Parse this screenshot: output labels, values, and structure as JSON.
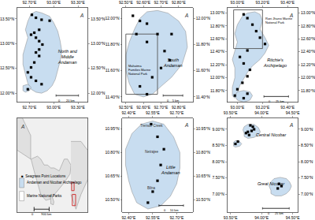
{
  "chart_data": [
    {
      "type": "map",
      "grid": false,
      "xlim": [
        92.55,
        93.42
      ],
      "ylim": [
        11.82,
        13.72
      ],
      "xticks": [
        {
          "value": 92.7,
          "label": "92.70°E"
        },
        {
          "value": 93.0,
          "label": "93.00°E"
        },
        {
          "value": 93.3,
          "label": "93.30°E"
        }
      ],
      "yticks": [
        {
          "value": 12.0,
          "label": "12.00°N"
        },
        {
          "value": 12.5,
          "label": "12.50°N"
        },
        {
          "value": 13.0,
          "label": "13.00°N"
        },
        {
          "value": 13.5,
          "label": "13.50°N"
        }
      ],
      "series": [
        {
          "type": "background",
          "color": "#ffffff"
        },
        {
          "type": "area",
          "color": "#c8ddf0",
          "x": [
            92.72,
            92.78,
            92.85,
            92.95,
            93.0,
            93.05,
            93.08,
            93.1,
            93.08,
            93.05,
            93.02,
            92.98,
            92.92,
            92.85,
            92.78,
            92.72,
            92.68,
            92.65,
            92.62,
            92.62,
            92.65,
            92.68,
            92.65,
            92.68,
            92.72
          ],
          "y": [
            13.6,
            13.65,
            13.62,
            13.55,
            13.42,
            13.25,
            13.05,
            12.85,
            12.65,
            12.45,
            12.28,
            12.15,
            12.05,
            12.0,
            12.02,
            12.08,
            12.2,
            12.38,
            12.58,
            12.78,
            12.95,
            13.12,
            13.28,
            13.45,
            13.6
          ]
        },
        {
          "type": "area",
          "color": "#c8ddf0",
          "x": [
            92.62,
            92.65,
            92.7,
            92.72,
            92.68,
            92.62,
            92.62
          ],
          "y": [
            12.05,
            12.02,
            12.05,
            12.12,
            12.18,
            12.15,
            12.05
          ]
        },
        {
          "type": "scatter",
          "marker": "square",
          "color": "#000000",
          "x": [
            92.73,
            92.78,
            92.85,
            92.95,
            92.82,
            92.76,
            92.72,
            92.78,
            92.82,
            92.86,
            92.82,
            92.78,
            92.82,
            92.76,
            92.72,
            92.68,
            92.72,
            92.78,
            92.85,
            92.68
          ],
          "y": [
            13.58,
            13.52,
            13.48,
            13.46,
            13.28,
            13.22,
            13.18,
            13.12,
            13.05,
            12.98,
            12.88,
            12.82,
            12.75,
            12.62,
            12.52,
            12.42,
            12.32,
            12.25,
            12.18,
            12.08
          ]
        },
        {
          "type": "scale_bar",
          "color": "#000000",
          "label": "0       20 km"
        }
      ],
      "annotations": [
        {
          "text": "North and\nMiddle\nAndaman"
        },
        {
          "text": "A"
        }
      ]
    },
    {
      "type": "map",
      "grid": false,
      "xlim": [
        92.48,
        92.88
      ],
      "ylim": [
        11.36,
        12.08
      ],
      "xticks": [
        {
          "value": 92.5,
          "label": "92.50°E"
        },
        {
          "value": 92.6,
          "label": "92.60°E"
        },
        {
          "value": 92.7,
          "label": "92.70°E"
        },
        {
          "value": 92.8,
          "label": "92.80°E"
        }
      ],
      "yticks": [
        {
          "value": 11.4,
          "label": "11.40°N"
        },
        {
          "value": 11.6,
          "label": "11.60°N"
        },
        {
          "value": 11.8,
          "label": "11.80°N"
        },
        {
          "value": 12.0,
          "label": "12.00°N"
        }
      ],
      "series": [
        {
          "type": "background",
          "color": "#ffffff"
        },
        {
          "type": "area",
          "color": "#c8ddf0",
          "x": [
            92.62,
            92.68,
            92.74,
            92.8,
            92.84,
            92.85,
            92.82,
            92.76,
            92.7,
            92.65,
            92.6,
            92.55,
            92.52,
            92.5,
            92.5,
            92.52,
            92.55,
            92.58,
            92.62
          ],
          "y": [
            12.05,
            12.06,
            12.04,
            11.98,
            11.9,
            11.78,
            11.65,
            11.55,
            11.48,
            11.42,
            11.4,
            11.42,
            11.5,
            11.6,
            11.72,
            11.82,
            11.92,
            12.0,
            12.05
          ]
        },
        {
          "type": "rect",
          "color": "#555555",
          "rect": [
            92.5,
            11.42,
            92.68,
            11.88
          ],
          "label": "Mahatma\nFamilies Marine\nNational Park"
        },
        {
          "type": "scatter",
          "marker": "square",
          "color": "#000000",
          "x": [
            92.54,
            92.58,
            92.62,
            92.56,
            92.62,
            92.68,
            92.76,
            92.72,
            92.75,
            92.7,
            92.65,
            92.58,
            92.62
          ],
          "y": [
            12.02,
            11.98,
            11.96,
            11.88,
            11.82,
            11.88,
            11.88,
            11.75,
            11.68,
            11.62,
            11.55,
            11.48,
            11.42
          ]
        },
        {
          "type": "scale_bar",
          "color": "#000000",
          "label": "0    5 km"
        }
      ],
      "annotations": [
        {
          "text": "South\nAndaman"
        },
        {
          "text": "A"
        }
      ]
    },
    {
      "type": "map",
      "grid": false,
      "xlim": [
        92.92,
        93.48
      ],
      "ylim": [
        11.62,
        13.08
      ],
      "xticks": [
        {
          "value": 93.0,
          "label": "93.00°E"
        },
        {
          "value": 93.2,
          "label": "93.20°E"
        },
        {
          "value": 93.4,
          "label": "93.40°E"
        }
      ],
      "yticks": [
        {
          "value": 11.8,
          "label": "11.80°N"
        },
        {
          "value": 12.0,
          "label": "12.00°N"
        },
        {
          "value": 12.2,
          "label": "12.20°N"
        },
        {
          "value": 12.4,
          "label": "12.40°N"
        },
        {
          "value": 12.6,
          "label": "12.60°N"
        },
        {
          "value": 12.8,
          "label": "12.80°N"
        },
        {
          "value": 13.0,
          "label": "13.00°N"
        }
      ],
      "series": [
        {
          "type": "background",
          "color": "#ffffff"
        },
        {
          "type": "area",
          "color": "#c8ddf0",
          "x": [
            93.04,
            93.08,
            93.14,
            93.18,
            93.2,
            93.18,
            93.22,
            93.25,
            93.22,
            93.18,
            93.12,
            93.08,
            93.05,
            93.02,
            93.0,
            92.98,
            92.96,
            92.96,
            92.98,
            92.98,
            92.96,
            92.98,
            93.0,
            92.98,
            93.0,
            93.04
          ],
          "y": [
            12.95,
            13.0,
            13.02,
            12.98,
            12.88,
            12.75,
            12.62,
            12.5,
            12.38,
            12.28,
            12.18,
            12.08,
            11.98,
            11.88,
            11.75,
            11.68,
            11.72,
            11.85,
            12.0,
            12.15,
            12.28,
            12.42,
            12.55,
            12.68,
            12.82,
            12.95
          ]
        },
        {
          "type": "area",
          "color": "#c8ddf0",
          "x": [
            93.0,
            93.05,
            93.1,
            93.12,
            93.1,
            93.05,
            93.0,
            92.98,
            93.0
          ],
          "y": [
            11.65,
            11.62,
            11.65,
            11.72,
            11.78,
            11.8,
            11.78,
            11.72,
            11.65
          ]
        },
        {
          "type": "rect",
          "color": "#555555",
          "rect": [
            92.97,
            12.45,
            93.2,
            13.05
          ],
          "label": "Rani Jhansi Marine\nNational Park"
        },
        {
          "type": "scatter",
          "marker": "square",
          "color": "#000000",
          "x": [
            93.05,
            93.08,
            93.12,
            93.15,
            93.18,
            93.22,
            93.08,
            93.02,
            93.05,
            93.1,
            93.08,
            93.04,
            93.0,
            92.98,
            93.05,
            93.08
          ],
          "y": [
            12.98,
            12.92,
            12.82,
            12.72,
            12.62,
            12.52,
            12.42,
            12.32,
            12.22,
            12.12,
            12.02,
            11.92,
            11.82,
            11.72,
            11.68,
            11.75
          ]
        },
        {
          "type": "scale_bar",
          "color": "#000000",
          "label": "0      25 km"
        }
      ],
      "annotations": [
        {
          "text": "Ritchie's\nArchipelago"
        },
        {
          "text": "A"
        }
      ]
    },
    {
      "type": "map",
      "grid": false,
      "tick_labels": false,
      "xlim": [
        60,
        102
      ],
      "ylim": [
        4,
        36
      ],
      "series": [
        {
          "type": "background",
          "color": "#f0f0f0"
        },
        {
          "type": "area",
          "color": "#e0e0e0",
          "x": [
            68.2,
            72,
            74,
            76,
            78,
            80,
            82,
            85,
            88,
            90,
            92,
            91.5,
            88,
            85,
            82,
            80,
            77,
            74,
            70,
            68.2
          ],
          "y": [
            22,
            23,
            22,
            20,
            20,
            19,
            19,
            18,
            22,
            22,
            20,
            17,
            14,
            12,
            10,
            8.5,
            8,
            10,
            18,
            22
          ]
        },
        {
          "type": "area",
          "color": "#e0e0e0",
          "x": [
            60,
            68,
            68,
            63,
            60
          ],
          "y": [
            25,
            22,
            30,
            36,
            36
          ]
        },
        {
          "type": "area",
          "color": "#e0e0e0",
          "x": [
            79.8,
            80.5,
            81.8,
            81.5,
            80,
            79.8
          ],
          "y": [
            9.8,
            9.8,
            7.5,
            6.5,
            6.8,
            9.8
          ]
        },
        {
          "type": "area",
          "color": "#e0e0e0",
          "x": [
            92,
            98,
            102,
            102,
            98,
            95,
            92
          ],
          "y": [
            28,
            28,
            25,
            15,
            10,
            5,
            10
          ]
        },
        {
          "type": "rect",
          "color": "#cc2222",
          "rect": [
            92.4,
            11.3,
            93.9,
            14.1
          ]
        },
        {
          "type": "rect",
          "color": "#cc2222",
          "rect": [
            92.8,
            6.2,
            94.8,
            10.0
          ]
        },
        {
          "type": "scale_bar",
          "color": "#000000",
          "x": [
            70,
            79
          ],
          "y": [
            5.0,
            5.0
          ],
          "label": "0         900 km"
        },
        {
          "type": "swatch",
          "name": "Andaman and Nicobar Archipelago",
          "color": "#c8ddf0"
        },
        {
          "type": "swatch",
          "name": "Marine National Parks",
          "color": "#ffffff"
        }
      ],
      "annotations": [
        {
          "text": "A"
        },
        {
          "text": "■  Seagrass Point Locations"
        }
      ]
    },
    {
      "type": "map",
      "grid": false,
      "xlim": [
        92.36,
        92.8
      ],
      "ylim": [
        10.42,
        11.02
      ],
      "xticks": [
        {
          "value": 92.4,
          "label": "92.40°E"
        },
        {
          "value": 92.55,
          "label": "92.55°E"
        },
        {
          "value": 92.7,
          "label": "92.70°E"
        }
      ],
      "yticks": [
        {
          "value": 10.5,
          "label": "10.50°N"
        },
        {
          "value": 10.65,
          "label": "10.65°N"
        },
        {
          "value": 10.8,
          "label": "10.80°N"
        },
        {
          "value": 10.95,
          "label": "10.95°N"
        }
      ],
      "series": [
        {
          "type": "background",
          "color": "#ffffff"
        },
        {
          "type": "area",
          "color": "#c8ddf0",
          "x": [
            92.45,
            92.52,
            92.6,
            92.66,
            92.7,
            92.72,
            92.72,
            92.68,
            92.62,
            92.55,
            92.48,
            92.42,
            92.38,
            92.38,
            92.4,
            92.42,
            92.45
          ],
          "y": [
            10.48,
            10.44,
            10.46,
            10.52,
            10.6,
            10.7,
            10.8,
            10.9,
            10.98,
            11.0,
            10.98,
            10.92,
            10.82,
            10.72,
            10.62,
            10.55,
            10.48
          ]
        },
        {
          "type": "scatter",
          "marker": "square",
          "color": "#000000",
          "x": [
            92.54,
            92.58,
            92.62,
            92.6,
            92.58,
            92.55,
            92.52
          ],
          "y": [
            10.98,
            10.9,
            10.82,
            10.72,
            10.62,
            10.55,
            10.48
          ]
        },
        {
          "type": "scale_bar",
          "color": "#000000",
          "label": "0     10 km"
        }
      ],
      "annotations": [
        {
          "text": "Little\nAndaman"
        },
        {
          "text": "Trensor Creek"
        },
        {
          "text": "Netrajee"
        },
        {
          "text": "Bilna"
        },
        {
          "text": "A"
        }
      ]
    },
    {
      "type": "map",
      "grid": false,
      "xlim": [
        93.45,
        94.58
      ],
      "ylim": [
        6.45,
        9.35
      ],
      "xticks": [
        {
          "value": 93.5,
          "label": "93.50°E"
        },
        {
          "value": 94.0,
          "label": "94.00°E"
        },
        {
          "value": 94.5,
          "label": "94.50°E"
        }
      ],
      "yticks": [
        {
          "value": 7.0,
          "label": "7.00°N"
        },
        {
          "value": 7.5,
          "label": "7.50°N"
        },
        {
          "value": 8.0,
          "label": "8.00°N"
        },
        {
          "value": 8.5,
          "label": "8.50°N"
        },
        {
          "value": 9.0,
          "label": "9.00°N"
        }
      ],
      "series": [
        {
          "type": "background",
          "color": "#ffffff"
        },
        {
          "type": "area",
          "color": "#c8ddf0",
          "x": [
            93.72,
            93.78,
            93.88,
            93.95,
            93.98,
            93.95,
            93.88,
            93.78,
            93.72,
            93.7,
            93.72,
            93.72
          ],
          "y": [
            8.78,
            8.72,
            8.75,
            8.82,
            8.92,
            9.05,
            9.15,
            9.15,
            9.08,
            8.98,
            8.88,
            8.78
          ]
        },
        {
          "type": "area",
          "color": "#c8ddf0",
          "x": [
            93.55,
            93.58,
            93.65,
            93.68,
            93.65,
            93.58,
            93.55,
            93.55
          ],
          "y": [
            8.48,
            8.45,
            8.48,
            8.55,
            8.62,
            8.65,
            8.6,
            8.48
          ]
        },
        {
          "type": "area",
          "color": "#c8ddf0",
          "x": [
            94.15,
            94.22,
            94.32,
            94.4,
            94.45,
            94.48,
            94.45,
            94.4,
            94.3,
            94.2,
            94.15,
            94.12,
            94.15,
            94.15
          ],
          "y": [
            7.02,
            6.95,
            6.95,
            7.02,
            7.12,
            7.25,
            7.38,
            7.48,
            7.52,
            7.48,
            7.38,
            7.25,
            7.12,
            7.02
          ]
        },
        {
          "type": "scatter",
          "marker": "square",
          "color": "#000000",
          "x": [
            93.82,
            93.86,
            93.88,
            93.84,
            93.78,
            93.75,
            93.8,
            93.62,
            93.58,
            94.28,
            94.32,
            94.26
          ],
          "y": [
            9.12,
            9.08,
            9.0,
            8.95,
            8.92,
            8.88,
            8.82,
            8.62,
            8.55,
            7.32,
            7.25,
            7.18
          ]
        },
        {
          "type": "scale_bar",
          "color": "#000000",
          "label": "0      25 km"
        }
      ],
      "annotations": [
        {
          "text": "Central Nicobar"
        },
        {
          "text": "Great Nicobar"
        },
        {
          "text": "A"
        }
      ]
    }
  ]
}
